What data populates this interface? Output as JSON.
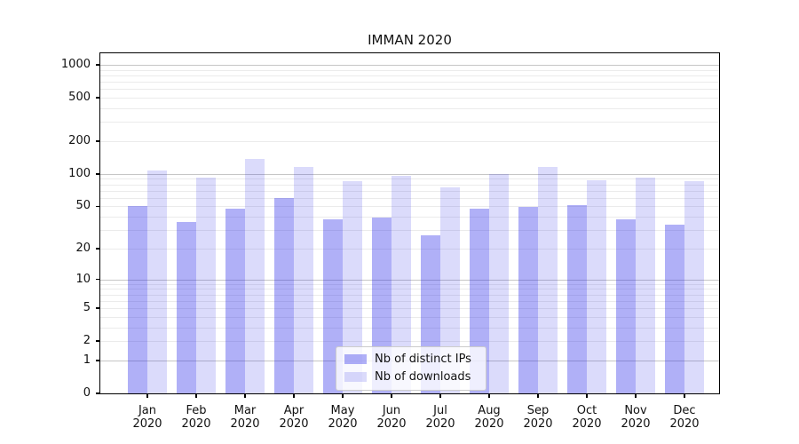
{
  "chart_data": {
    "type": "bar",
    "title": "IMMAN 2020",
    "months": [
      "Jan",
      "Feb",
      "Mar",
      "Apr",
      "May",
      "Jun",
      "Jul",
      "Aug",
      "Sep",
      "Oct",
      "Nov",
      "Dec"
    ],
    "year": "2020",
    "series": [
      {
        "name": "Nb of distinct IPs",
        "values": [
          50,
          36,
          48,
          60,
          38,
          39,
          27,
          48,
          49,
          51,
          38,
          34
        ]
      },
      {
        "name": "Nb of downloads",
        "values": [
          108,
          93,
          137,
          117,
          86,
          96,
          75,
          100,
          115,
          87,
          93,
          85
        ]
      }
    ],
    "y_ticks": [
      0,
      1,
      2,
      5,
      10,
      20,
      50,
      100,
      200,
      500,
      1000
    ],
    "y_scale": "log10(value+1)",
    "ylim": [
      0,
      1000
    ],
    "grid": "both",
    "legend_position": "lower center",
    "colors": {
      "distinct_ips_bar": "rgba(28,28,232,0.35)",
      "downloads_bar": "rgba(28,28,232,0.16)",
      "major_gridline": "#c6c6c6",
      "minor_gridline": "#ebebeb",
      "axis": "#000000"
    }
  }
}
